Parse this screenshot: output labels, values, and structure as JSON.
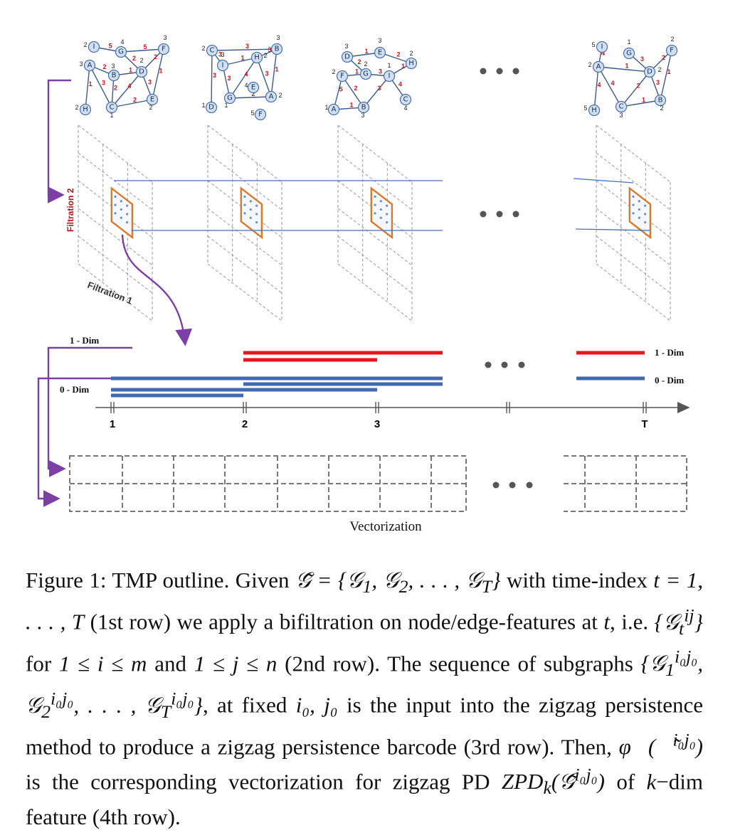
{
  "labels": {
    "filtration_1": "Filtration 1",
    "filtration_2": "Filtration 2",
    "dim1_left": "1 - Dim",
    "dim0_left": "0 - Dim",
    "dim1_right": "1 - Dim",
    "dim0_right": "0 - Dim",
    "vectorization": "Vectorization"
  },
  "timeline": {
    "ticks": [
      "1",
      "2",
      "3",
      "T"
    ]
  },
  "colors": {
    "red_bar": "#e8141b",
    "blue_bar": "#4268b2",
    "orange_box": "#d9792e",
    "purple_arrow": "#7b3fa6"
  },
  "caption": {
    "p1": "Figure 1: TMP outline. Given ",
    "m_gtilde": "𝒢̃ = {𝒢",
    "p2": " with time-index ",
    "m_t": "t = 1, . . . , T",
    "p3": " (1st row) we apply a bifiltration on node/edge-features at ",
    "m_t2": "t",
    "p4": ", i.e. ",
    "m_set": "{𝒢",
    "p5": " for ",
    "m_i": "1 ≤ i ≤ m",
    "p6": " and ",
    "m_j": "1 ≤ j ≤ n",
    "p7": " (2nd row). The sequence of subgraphs ",
    "p8": ", at fixed ",
    "m_ij0": "i₀, j₀",
    "p9": " is the input into the zigzag persistence method to produce a zigzag persistence barcode (3rd row). Then, ",
    "p10": " is the corresponding vectorization for zigzag PD ",
    "p11": " of ",
    "m_k": "k",
    "p12": "−dim feature (4th row)."
  }
}
